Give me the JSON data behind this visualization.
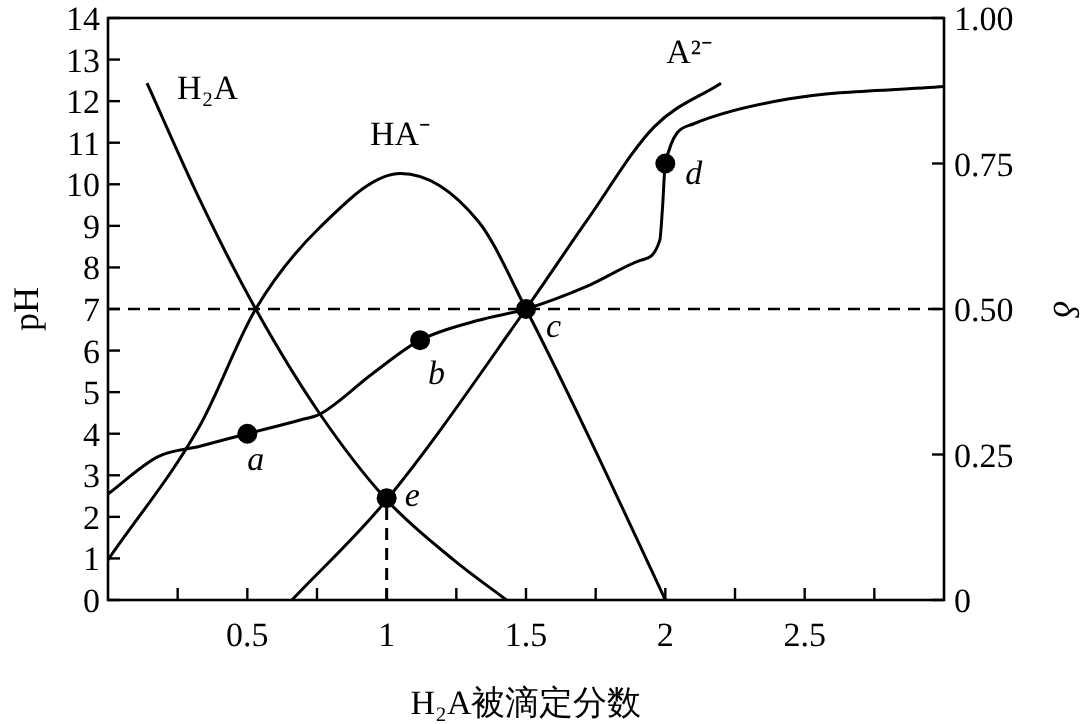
{
  "chart_data": {
    "type": "line",
    "xlabel": "H₂A被滴定分数",
    "ylabel": "pH",
    "y2label": "δ",
    "xlim": [
      0,
      3
    ],
    "xticks": [
      {
        "value": 0.25,
        "label": null
      },
      0.5,
      {
        "value": 0.75,
        "label": null
      },
      1,
      {
        "value": 1.25,
        "label": null
      },
      1.5,
      {
        "value": 1.75,
        "label": null
      },
      2,
      {
        "value": 2.25,
        "label": null
      },
      2.5,
      {
        "value": 2.75,
        "label": null
      }
    ],
    "ylim": [
      0,
      14
    ],
    "yticks": [
      0,
      1,
      2,
      3,
      4,
      5,
      6,
      7,
      8,
      9,
      10,
      11,
      12,
      13,
      14
    ],
    "y2lim": [
      0,
      1
    ],
    "y2ticks": [
      0,
      {
        "value": 0.25,
        "label": "0.25"
      },
      {
        "value": 0.5,
        "label": "0.50"
      },
      {
        "value": 0.75,
        "label": "0.75"
      },
      {
        "value": 1,
        "label": "1.00"
      }
    ],
    "grid": false,
    "legend": false,
    "series": [
      {
        "axis": "y",
        "color": "#000000",
        "x": [
          0,
          0.18,
          0.33,
          0.5,
          0.69,
          0.76,
          0.95,
          1.12,
          1.33,
          1.5,
          1.72,
          1.91,
          1.98,
          1.99,
          2.0,
          2.1,
          2.44,
          3.0
        ],
        "values": [
          2.55,
          3.45,
          3.7,
          4.0,
          4.33,
          4.47,
          5.45,
          6.25,
          6.73,
          7.0,
          7.55,
          8.17,
          8.65,
          9.45,
          10.5,
          11.45,
          12.05,
          12.35
        ]
      },
      {
        "axis": "y2",
        "name": "H₂A",
        "color": "#000000",
        "x": [
          0.14,
          0.33,
          0.53,
          0.76,
          1.0,
          1.24,
          1.43
        ],
        "values": [
          0.888,
          0.687,
          0.5,
          0.32,
          0.172,
          0.069,
          0
        ]
      },
      {
        "axis": "y2",
        "name": "HA⁻",
        "color": "#000000",
        "x": [
          0,
          0.33,
          0.53,
          0.76,
          1.05,
          1.33,
          1.5,
          1.72,
          2.0
        ],
        "values": [
          0.069,
          0.3,
          0.5,
          0.64,
          0.733,
          0.65,
          0.5,
          0.286,
          0
        ]
      },
      {
        "axis": "y2",
        "name": "A²⁻",
        "color": "#000000",
        "x": [
          0.66,
          1.0,
          1.5,
          1.72,
          1.96,
          2.2
        ],
        "values": [
          0,
          0.172,
          0.5,
          0.653,
          0.813,
          0.888
        ]
      },
      {
        "axis": "y",
        "color": "#000000",
        "line_style": "dashed",
        "x": [
          1,
          1
        ],
        "values": [
          0,
          2.45
        ]
      },
      {
        "type": "scatter",
        "axis": "y",
        "color": "#000000",
        "marker": "circle",
        "x": [
          0.5,
          1.12,
          1.5,
          2.0,
          1.0
        ],
        "values": [
          4.0,
          6.25,
          7.0,
          10.5,
          2.45
        ]
      }
    ],
    "ref_lines": [
      {
        "axis": "y",
        "value": 7,
        "color": "#000000",
        "line_style": "dashed"
      }
    ],
    "annotations": [
      {
        "text": "a",
        "x": 0.5,
        "y": 4.0
      },
      {
        "text": "b",
        "x": 1.12,
        "y": 6.25
      },
      {
        "text": "c",
        "x": 1.5,
        "y": 7.0
      },
      {
        "text": "d",
        "x": 2.0,
        "y": 10.5
      },
      {
        "text": "e",
        "x": 1.0,
        "y": 2.45
      }
    ]
  }
}
